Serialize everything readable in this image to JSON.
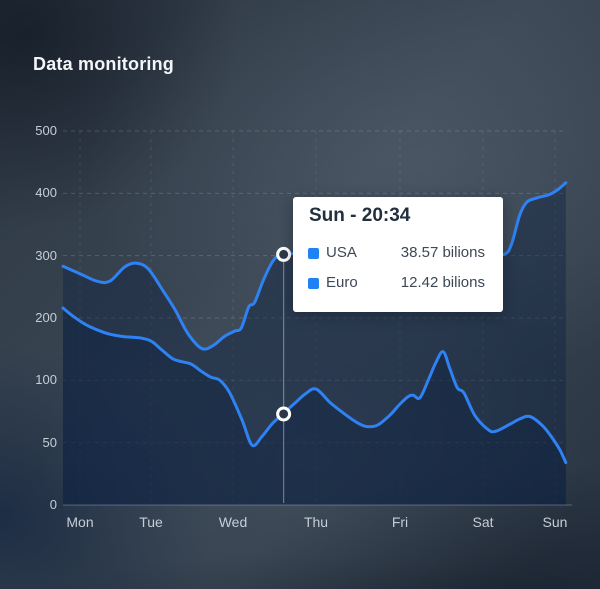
{
  "header": {
    "title": "Data monitoring"
  },
  "colors": {
    "line": "#2e82f4",
    "area_fill": "rgba(13,33,64,0.40)",
    "legend_swatch": "#1e82f5",
    "axis_label": "#c6cdd6",
    "grid_h": "rgba(255,255,255,0.16)",
    "grid_v": "rgba(255,255,255,0.10)",
    "axis_line": "rgba(220,228,238,0.30)",
    "hover_line": "rgba(205,216,232,0.45)",
    "marker_ring": "#ffffff",
    "marker_fill": "#2c3847",
    "tooltip_bg": "#ffffff",
    "tooltip_title": "#222f3e",
    "tooltip_text": "#3d4856"
  },
  "tooltip": {
    "title": "Sun - 20:34",
    "rows": [
      {
        "label": "USA",
        "value": "38.57 bilions"
      },
      {
        "label": "Euro",
        "value": "12.42 bilions"
      }
    ]
  },
  "chart_data": {
    "type": "line",
    "title": "Data monitoring",
    "x_categories": [
      "Mon",
      "Tue",
      "Wed",
      "Thu",
      "Fri",
      "Sat",
      "Sun"
    ],
    "y_ticks": [
      0,
      50,
      100,
      200,
      300,
      400,
      500
    ],
    "ylim": [
      0,
      500
    ],
    "y_axis_note": "non-linear axis: listed ticks are equally spaced",
    "grid": true,
    "legend_position": "tooltip-only",
    "series": [
      {
        "name": "USA",
        "points": [
          [
            -0.24,
            283
          ],
          [
            0,
            271
          ],
          [
            0.24,
            259
          ],
          [
            0.42,
            259
          ],
          [
            0.63,
            282
          ],
          [
            0.79,
            288
          ],
          [
            0.96,
            279
          ],
          [
            1.15,
            243
          ],
          [
            1.29,
            214
          ],
          [
            1.45,
            175
          ],
          [
            1.62,
            151
          ],
          [
            1.76,
            156
          ],
          [
            1.89,
            170
          ],
          [
            2.02,
            179
          ],
          [
            2.1,
            184
          ],
          [
            2.19,
            218
          ],
          [
            2.26,
            225
          ],
          [
            2.37,
            262
          ],
          [
            2.49,
            293
          ],
          [
            2.61,
            302
          ],
          [
            2.93,
            303
          ],
          [
            3.4,
            297
          ],
          [
            4.0,
            291
          ],
          [
            4.6,
            295
          ],
          [
            5.08,
            300
          ],
          [
            5.31,
            303
          ],
          [
            5.4,
            320
          ],
          [
            5.51,
            365
          ],
          [
            5.61,
            386
          ],
          [
            5.76,
            393
          ],
          [
            5.92,
            398
          ],
          [
            6.04,
            406
          ],
          [
            6.15,
            417
          ]
        ]
      },
      {
        "name": "Euro",
        "points": [
          [
            -0.24,
            216
          ],
          [
            -0.1,
            203
          ],
          [
            0.07,
            190
          ],
          [
            0.24,
            181
          ],
          [
            0.42,
            174
          ],
          [
            0.63,
            170
          ],
          [
            0.85,
            168
          ],
          [
            1.0,
            163
          ],
          [
            1.13,
            149
          ],
          [
            1.26,
            135
          ],
          [
            1.37,
            130
          ],
          [
            1.49,
            126
          ],
          [
            1.62,
            114
          ],
          [
            1.73,
            105
          ],
          [
            1.84,
            100
          ],
          [
            1.96,
            90
          ],
          [
            2.11,
            68
          ],
          [
            2.23,
            48
          ],
          [
            2.35,
            55
          ],
          [
            2.47,
            65
          ],
          [
            2.6,
            73
          ],
          [
            2.75,
            82
          ],
          [
            2.87,
            89
          ],
          [
            3.0,
            93
          ],
          [
            3.17,
            82
          ],
          [
            3.32,
            74
          ],
          [
            3.49,
            66
          ],
          [
            3.6,
            63
          ],
          [
            3.73,
            64
          ],
          [
            3.88,
            72
          ],
          [
            4.0,
            81
          ],
          [
            4.1,
            87
          ],
          [
            4.16,
            88
          ],
          [
            4.24,
            86
          ],
          [
            4.34,
            100
          ],
          [
            4.43,
            128
          ],
          [
            4.52,
            146
          ],
          [
            4.6,
            119
          ],
          [
            4.69,
            94
          ],
          [
            4.77,
            90
          ],
          [
            4.9,
            72
          ],
          [
            5.06,
            61
          ],
          [
            5.17,
            59
          ],
          [
            5.38,
            65
          ],
          [
            5.51,
            69
          ],
          [
            5.65,
            71
          ],
          [
            5.82,
            64
          ],
          [
            5.96,
            54
          ],
          [
            6.07,
            44
          ],
          [
            6.15,
            34
          ]
        ]
      }
    ],
    "hover_marker": {
      "x": 2.61,
      "label": "Sun - 20:34",
      "values": {
        "USA": 302,
        "Euro": 73
      }
    }
  }
}
